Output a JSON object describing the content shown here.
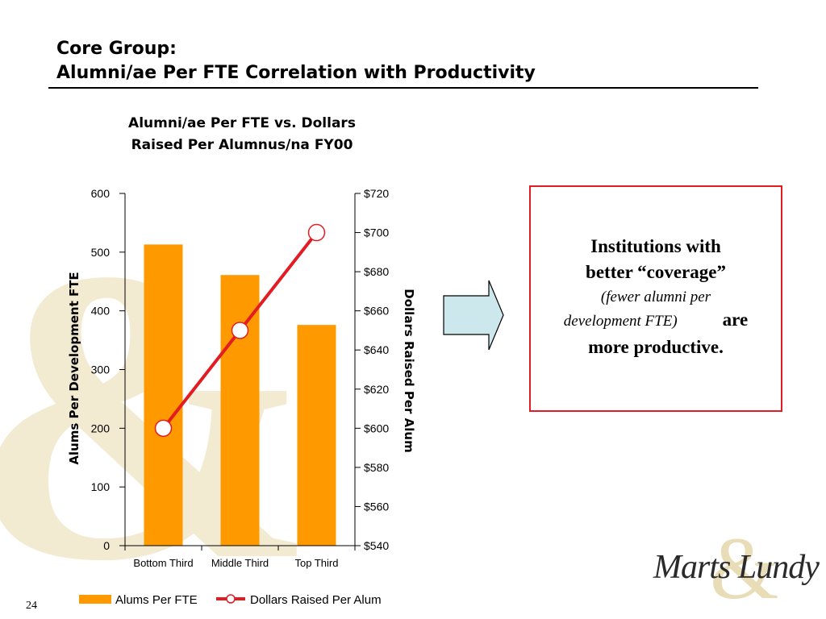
{
  "slide": {
    "title_line1": "Core Group:",
    "title_line2": "Alumni/ae Per FTE Correlation with Productivity",
    "page_number": "24"
  },
  "callout": {
    "line1a": "Institutions with",
    "line1b": "better “coverage”",
    "italic_a": "(fewer alumni per",
    "italic_b": "development FTE)",
    "are": "are",
    "line3": "more productive."
  },
  "logo": {
    "text": "Marts Lundy",
    "amp": "&"
  },
  "colors": {
    "bar": "#ff9900",
    "line": "#e31b23",
    "marker_fill": "#ffffff",
    "callout_border": "#e31b23",
    "arrow_fill": "#cde8ec",
    "watermark": "#f3ead2"
  },
  "chart_data": {
    "type": "bar",
    "title_line1": "Alumni/ae Per FTE vs. Dollars",
    "title_line2": "Raised Per Alumnus/na FY00",
    "categories": [
      "Bottom Third",
      "Middle Third",
      "Top Third"
    ],
    "series": [
      {
        "name": "Alums Per FTE",
        "type": "bar",
        "axis": "left",
        "values": [
          513,
          461,
          376
        ]
      },
      {
        "name": "Dollars Raised Per Alum",
        "type": "line",
        "axis": "right",
        "values": [
          600,
          650,
          700
        ]
      }
    ],
    "left_axis": {
      "label": "Alums Per Development FTE",
      "min": 0,
      "max": 600,
      "ticks": [
        "0",
        "100",
        "200",
        "300",
        "400",
        "500",
        "600"
      ]
    },
    "right_axis": {
      "label": "Dollars Raised Per Alum",
      "min": 540,
      "max": 720,
      "ticks": [
        "$540",
        "$560",
        "$580",
        "$600",
        "$620",
        "$640",
        "$660",
        "$680",
        "$700",
        "$720"
      ]
    },
    "grid": false,
    "legend_position": "bottom"
  }
}
